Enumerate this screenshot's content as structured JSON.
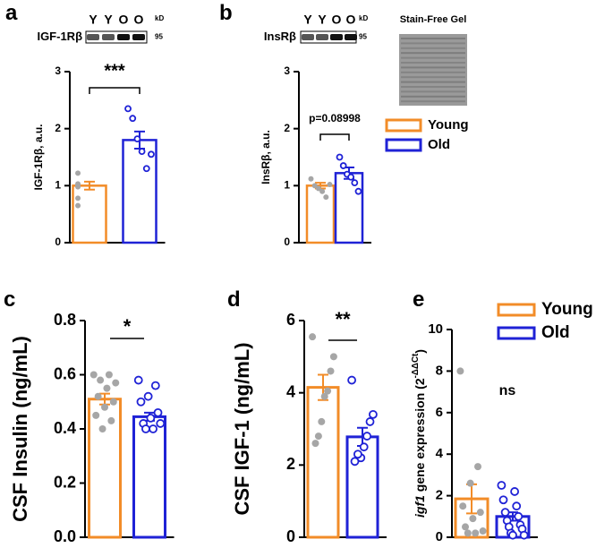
{
  "chart_data": [
    {
      "type": "bar",
      "panel": "a",
      "ylabel": "IGF-1Rβ, a.u.",
      "ylim": [
        0,
        3
      ],
      "yticks": [
        0,
        1,
        2,
        3
      ],
      "blot_label": "IGF-1Rβ",
      "lanes": [
        "Y",
        "Y",
        "O",
        "O"
      ],
      "kd_label": "kD",
      "marker": "95",
      "significance": "***",
      "series": [
        {
          "color": "#f28c28",
          "values": [
            1.0
          ],
          "errors": [
            0.07
          ],
          "points": [
            1.22,
            1.03,
            1.0,
            0.98,
            0.78,
            0.65,
            1.0
          ]
        },
        {
          "color": "#1f22d6",
          "values": [
            1.8
          ],
          "errors": [
            0.15
          ],
          "points": [
            2.35,
            2.18,
            1.82,
            1.6,
            1.3,
            1.55
          ]
        }
      ]
    },
    {
      "type": "bar",
      "panel": "b",
      "ylabel": "InsRβ, a.u.",
      "ylim": [
        0,
        3
      ],
      "yticks": [
        0,
        1,
        2,
        3
      ],
      "blot_label": "InsRβ",
      "lanes": [
        "Y",
        "Y",
        "O",
        "O"
      ],
      "kd_label": "kD",
      "marker": "95",
      "gel_label": "Stain-Free Gel",
      "significance": "p=0.08998",
      "legend": "right",
      "series": [
        {
          "name": "Young",
          "color": "#f28c28",
          "values": [
            1.0
          ],
          "errors": [
            0.05
          ],
          "points": [
            1.12,
            1.0,
            0.95,
            0.9,
            0.8,
            1.02
          ]
        },
        {
          "name": "Old",
          "color": "#1f22d6",
          "values": [
            1.22
          ],
          "errors": [
            0.1
          ],
          "points": [
            1.5,
            1.35,
            1.2,
            1.15,
            1.05,
            0.9
          ]
        }
      ]
    },
    {
      "type": "bar",
      "panel": "c",
      "ylabel": "CSF Insulin (ng/mL)",
      "ylim": [
        0,
        0.8
      ],
      "yticks": [
        {
          "value": 0,
          "label": "0.0"
        },
        0.2,
        0.4,
        0.6,
        0.8
      ],
      "significance": "*",
      "series": [
        {
          "color": "#f28c28",
          "values": [
            0.51
          ],
          "errors": [
            0.02
          ],
          "points": [
            0.6,
            0.6,
            0.58,
            0.57,
            0.55,
            0.52,
            0.5,
            0.48,
            0.45,
            0.43,
            0.4
          ]
        },
        {
          "color": "#1f22d6",
          "values": [
            0.445
          ],
          "errors": [
            0.015
          ],
          "points": [
            0.58,
            0.56,
            0.52,
            0.5,
            0.46,
            0.44,
            0.42,
            0.42,
            0.4,
            0.4
          ]
        }
      ]
    },
    {
      "type": "bar",
      "panel": "d",
      "ylabel": "CSF IGF-1 (ng/mL)",
      "ylim": [
        0,
        6
      ],
      "yticks": [
        0,
        2,
        4,
        6
      ],
      "significance": "**",
      "series": [
        {
          "color": "#f28c28",
          "values": [
            4.15
          ],
          "errors": [
            0.35
          ],
          "points": [
            5.55,
            5.0,
            4.6,
            4.05,
            3.9,
            3.2,
            2.8,
            2.6
          ]
        },
        {
          "color": "#1f22d6",
          "values": [
            2.78
          ],
          "errors": [
            0.25
          ],
          "points": [
            4.35,
            3.4,
            3.2,
            2.8,
            2.5,
            2.2,
            2.3,
            2.1
          ]
        }
      ]
    },
    {
      "type": "bar",
      "panel": "e",
      "ylabel": [
        "igf1",
        " gene expression (2",
        "-ΔΔCt",
        ")"
      ],
      "ylim": [
        0,
        10
      ],
      "yticks": [
        0,
        2,
        4,
        6,
        8,
        10
      ],
      "significance": "ns",
      "legend": "upper right",
      "series": [
        {
          "name": "Young",
          "color": "#f28c28",
          "values": [
            1.85
          ],
          "errors": [
            0.7
          ],
          "points": [
            8.0,
            3.4,
            2.6,
            1.5,
            1.2,
            0.9,
            0.5,
            0.3,
            0.2,
            0.2
          ]
        },
        {
          "name": "Old",
          "color": "#1f22d6",
          "values": [
            1.0
          ],
          "errors": [
            0.2
          ],
          "points": [
            2.5,
            2.2,
            1.8,
            1.5,
            1.2,
            1.0,
            0.8,
            0.6,
            0.5,
            0.4,
            0.2,
            0.1,
            0.1
          ]
        }
      ]
    }
  ]
}
